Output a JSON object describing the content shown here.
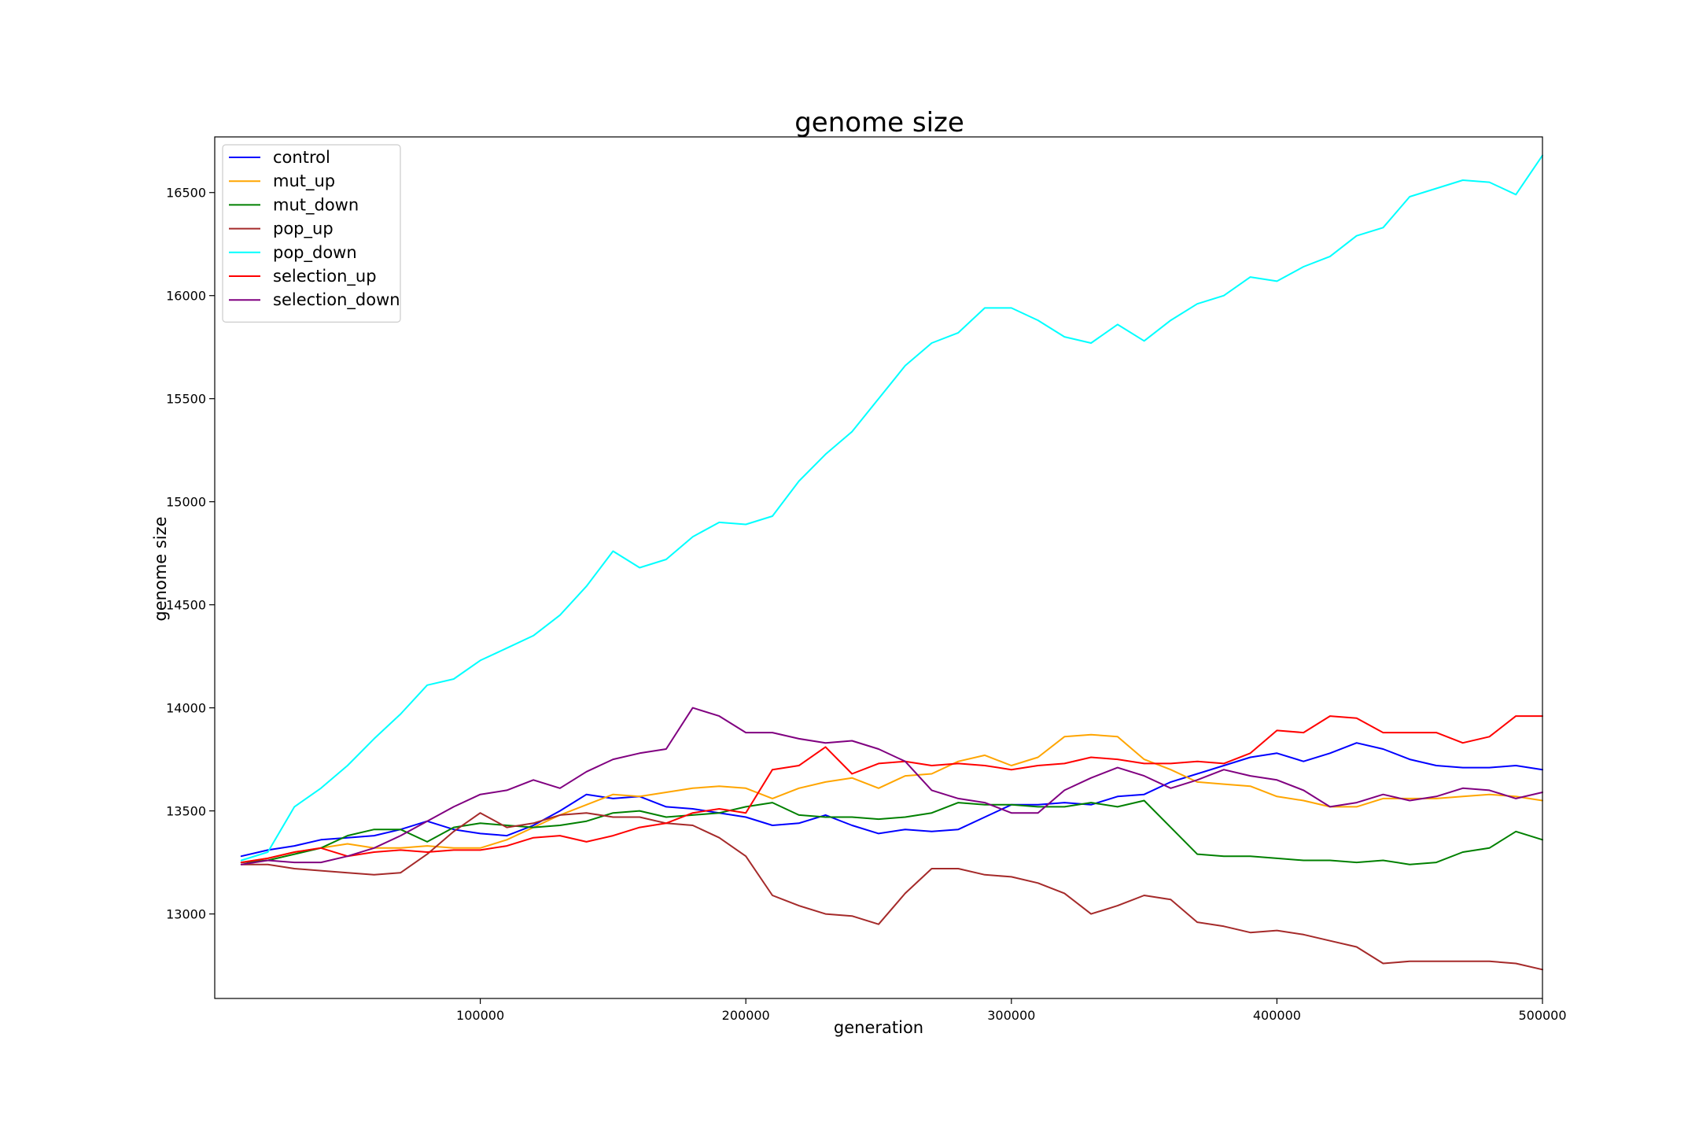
{
  "chart_data": {
    "type": "line",
    "title": "genome size",
    "xlabel": "generation",
    "ylabel": "genome size",
    "xlim": [
      0,
      500000
    ],
    "ylim": [
      12590,
      16770
    ],
    "x_ticks": [
      100000,
      200000,
      300000,
      400000,
      500000
    ],
    "y_ticks": [
      13000,
      13500,
      14000,
      14500,
      15000,
      15500,
      16000,
      16500
    ],
    "grid": false,
    "legend_position": "top-left",
    "x": [
      10000,
      20000,
      30000,
      40000,
      50000,
      60000,
      70000,
      80000,
      90000,
      100000,
      110000,
      120000,
      130000,
      140000,
      150000,
      160000,
      170000,
      180000,
      190000,
      200000,
      210000,
      220000,
      230000,
      240000,
      250000,
      260000,
      270000,
      280000,
      290000,
      300000,
      310000,
      320000,
      330000,
      340000,
      350000,
      360000,
      370000,
      380000,
      390000,
      400000,
      410000,
      420000,
      430000,
      440000,
      450000,
      460000,
      470000,
      480000,
      490000,
      500000
    ],
    "series": [
      {
        "name": "control",
        "color": "#0000ff",
        "values": [
          13280,
          13310,
          13330,
          13360,
          13370,
          13380,
          13410,
          13450,
          13410,
          13390,
          13380,
          13430,
          13500,
          13580,
          13560,
          13570,
          13520,
          13510,
          13490,
          13470,
          13430,
          13440,
          13480,
          13430,
          13390,
          13410,
          13400,
          13410,
          13470,
          13530,
          13530,
          13540,
          13530,
          13570,
          13580,
          13640,
          13680,
          13720,
          13760,
          13780,
          13740,
          13780,
          13830,
          13800,
          13750,
          13720,
          13710,
          13710,
          13720,
          13700
        ]
      },
      {
        "name": "mut_up",
        "color": "#ffa500",
        "values": [
          13250,
          13270,
          13300,
          13320,
          13340,
          13320,
          13320,
          13330,
          13320,
          13320,
          13360,
          13420,
          13480,
          13530,
          13580,
          13570,
          13590,
          13610,
          13620,
          13610,
          13560,
          13610,
          13640,
          13660,
          13610,
          13670,
          13680,
          13740,
          13770,
          13720,
          13760,
          13860,
          13870,
          13860,
          13750,
          13700,
          13640,
          13630,
          13620,
          13570,
          13550,
          13520,
          13520,
          13560,
          13560,
          13560,
          13570,
          13580,
          13570,
          13550
        ]
      },
      {
        "name": "mut_down",
        "color": "#008000",
        "values": [
          13250,
          13260,
          13290,
          13320,
          13380,
          13410,
          13410,
          13350,
          13420,
          13440,
          13430,
          13420,
          13430,
          13450,
          13490,
          13500,
          13470,
          13480,
          13490,
          13520,
          13540,
          13480,
          13470,
          13470,
          13460,
          13470,
          13490,
          13540,
          13530,
          13530,
          13520,
          13520,
          13540,
          13520,
          13550,
          13420,
          13290,
          13280,
          13280,
          13270,
          13260,
          13260,
          13250,
          13260,
          13240,
          13250,
          13300,
          13320,
          13400,
          13360
        ]
      },
      {
        "name": "pop_up",
        "color": "#a52a2a",
        "values": [
          13240,
          13240,
          13220,
          13210,
          13200,
          13190,
          13200,
          13290,
          13400,
          13490,
          13420,
          13440,
          13480,
          13490,
          13470,
          13470,
          13440,
          13430,
          13370,
          13280,
          13090,
          13040,
          13000,
          12990,
          12950,
          13100,
          13220,
          13220,
          13190,
          13180,
          13150,
          13100,
          13000,
          13040,
          13090,
          13070,
          12960,
          12940,
          12910,
          12920,
          12900,
          12870,
          12840,
          12760,
          12770,
          12770,
          12770,
          12770,
          12760,
          12730
        ]
      },
      {
        "name": "pop_down",
        "color": "#00ffff",
        "values": [
          13260,
          13300,
          13520,
          13610,
          13720,
          13850,
          13970,
          14110,
          14140,
          14230,
          14290,
          14350,
          14450,
          14590,
          14760,
          14680,
          14720,
          14830,
          14900,
          14890,
          14930,
          15100,
          15230,
          15340,
          15500,
          15660,
          15770,
          15820,
          15940,
          15940,
          15880,
          15800,
          15770,
          15860,
          15780,
          15880,
          15960,
          16000,
          16090,
          16070,
          16140,
          16190,
          16290,
          16330,
          16480,
          16520,
          16560,
          16550,
          16490,
          16680
        ]
      },
      {
        "name": "selection_up",
        "color": "#ff0000",
        "values": [
          13250,
          13270,
          13300,
          13320,
          13280,
          13300,
          13310,
          13300,
          13310,
          13310,
          13330,
          13370,
          13380,
          13350,
          13380,
          13420,
          13440,
          13490,
          13510,
          13490,
          13700,
          13720,
          13810,
          13680,
          13730,
          13740,
          13720,
          13730,
          13720,
          13700,
          13720,
          13730,
          13760,
          13750,
          13730,
          13730,
          13740,
          13730,
          13780,
          13890,
          13880,
          13960,
          13950,
          13880,
          13880,
          13880,
          13830,
          13860,
          13960,
          13960
        ]
      },
      {
        "name": "selection_down",
        "color": "#800080",
        "values": [
          13240,
          13260,
          13250,
          13250,
          13280,
          13320,
          13380,
          13450,
          13520,
          13580,
          13600,
          13650,
          13610,
          13690,
          13750,
          13780,
          13800,
          14000,
          13960,
          13880,
          13880,
          13850,
          13830,
          13840,
          13800,
          13740,
          13600,
          13560,
          13540,
          13490,
          13490,
          13600,
          13660,
          13710,
          13670,
          13610,
          13650,
          13700,
          13670,
          13650,
          13600,
          13520,
          13540,
          13580,
          13550,
          13570,
          13610,
          13600,
          13560,
          13590
        ]
      }
    ]
  }
}
